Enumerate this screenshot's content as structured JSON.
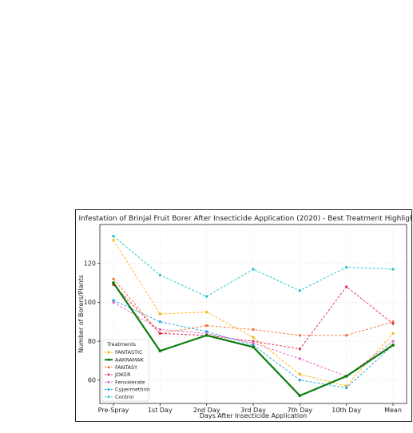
{
  "chart_data": {
    "type": "line",
    "title": "Infestation of Brinjal Fruit Borer After Insecticide Application (2020) - Best Treatment Highlighted",
    "xlabel": "Days After Insecticide Application",
    "ylabel": "Number of Borers/Plants",
    "categories": [
      "Pre-Spray",
      "1st Day",
      "2nd Day",
      "3rd Day",
      "7th Day",
      "10th Day",
      "Mean"
    ],
    "ylim": [
      48,
      140
    ],
    "yticks": [
      60,
      80,
      100,
      120
    ],
    "grid": true,
    "legend": {
      "title": "Treatments",
      "placement": "lower-left"
    },
    "series": [
      {
        "name": "FANTASTIC",
        "color": "#ffb000",
        "style": "dashed",
        "highlight": false,
        "values": [
          132,
          94,
          95,
          82,
          63,
          57,
          84
        ]
      },
      {
        "name": "AAKRAMAK",
        "color": "#0b7d0b",
        "style": "solid",
        "highlight": true,
        "values": [
          110,
          75,
          83,
          77,
          52,
          62,
          78
        ]
      },
      {
        "name": "FANTASY",
        "color": "#f26b2a",
        "style": "dashed",
        "highlight": false,
        "values": [
          112,
          84,
          88,
          86,
          83,
          83,
          90
        ]
      },
      {
        "name": "JOKER",
        "color": "#e0294b",
        "style": "dashed",
        "highlight": false,
        "values": [
          109,
          84,
          83,
          80,
          76,
          108,
          89
        ]
      },
      {
        "name": "Fenvalerate",
        "color": "#ee5fc2",
        "style": "dashed",
        "highlight": false,
        "values": [
          100,
          86,
          84,
          79,
          71,
          62,
          80
        ]
      },
      {
        "name": "Cypermethrin",
        "color": "#1fa4e6",
        "style": "dashed",
        "highlight": false,
        "values": [
          101,
          90,
          85,
          78,
          60,
          56,
          78
        ]
      },
      {
        "name": "Control",
        "color": "#17c3c3",
        "style": "dashed",
        "highlight": false,
        "values": [
          134,
          114,
          103,
          117,
          106,
          118,
          117
        ]
      }
    ]
  }
}
